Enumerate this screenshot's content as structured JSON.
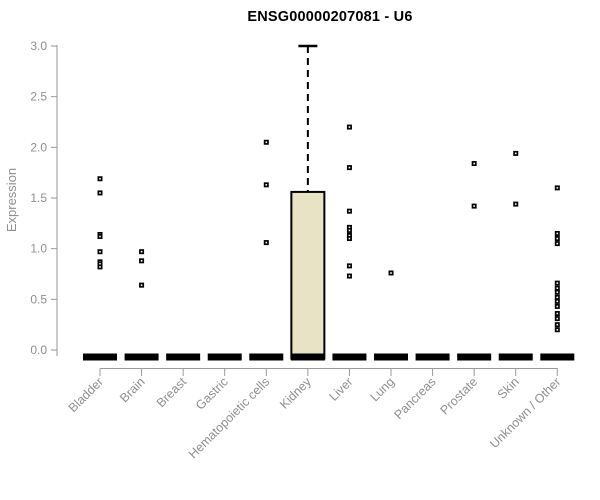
{
  "title": "ENSG00000207081 - U6",
  "colors": {
    "background": "#ffffff",
    "title_text": "#000000",
    "axis_line": "#9a9a9a",
    "axis_text": "#8f8f8f",
    "point": "#000000",
    "zero_bar": "#000000",
    "box_fill": "#e9e3c6",
    "box_stroke": "#000000",
    "whisker": "#000000"
  },
  "chart_data": {
    "type": "boxplot",
    "title": "ENSG00000207081 - U6",
    "xlabel": "",
    "ylabel": "Expression",
    "ylim": [
      0.0,
      3.0
    ],
    "yticks": [
      0.0,
      0.5,
      1.0,
      1.5,
      2.0,
      2.5,
      3.0
    ],
    "ytick_labels": [
      "0.0",
      "0.5",
      "1.0",
      "1.5",
      "2.0",
      "2.5",
      "3.0"
    ],
    "grid": false,
    "legend": "none",
    "x_labels_rotation_deg": 45,
    "categories": [
      "Bladder",
      "Brain",
      "Breast",
      "Gastric",
      "Hematopoietic cells",
      "Kidney",
      "Liver",
      "Lung",
      "Pancreas",
      "Prostate",
      "Skin",
      "Unknown / Other"
    ],
    "boxes": [
      {
        "category": "Bladder",
        "q1": 0,
        "median": 0,
        "q3": 0,
        "whisker_low": 0,
        "whisker_high": 0,
        "points": [
          1.69,
          1.55,
          1.14,
          1.12,
          0.97,
          0.87,
          0.85,
          0.82
        ]
      },
      {
        "category": "Brain",
        "q1": 0,
        "median": 0,
        "q3": 0,
        "whisker_low": 0,
        "whisker_high": 0,
        "points": [
          0.97,
          0.88,
          0.64
        ]
      },
      {
        "category": "Breast",
        "q1": 0,
        "median": 0,
        "q3": 0,
        "whisker_low": 0,
        "whisker_high": 0,
        "points": []
      },
      {
        "category": "Gastric",
        "q1": 0,
        "median": 0,
        "q3": 0,
        "whisker_low": 0,
        "whisker_high": 0,
        "points": []
      },
      {
        "category": "Hematopoietic cells",
        "q1": 0,
        "median": 0,
        "q3": 0,
        "whisker_low": 0,
        "whisker_high": 0,
        "points": [
          2.05,
          1.63,
          1.06
        ]
      },
      {
        "category": "Kidney",
        "q1": 0,
        "median": 0.02,
        "q3": 1.56,
        "whisker_low": 0,
        "whisker_high": 3.0,
        "points": []
      },
      {
        "category": "Liver",
        "q1": 0,
        "median": 0,
        "q3": 0,
        "whisker_low": 0,
        "whisker_high": 0,
        "points": [
          2.2,
          1.8,
          1.37,
          1.21,
          1.18,
          1.13,
          1.1,
          0.83,
          0.73
        ]
      },
      {
        "category": "Lung",
        "q1": 0,
        "median": 0,
        "q3": 0,
        "whisker_low": 0,
        "whisker_high": 0,
        "points": [
          0.76
        ]
      },
      {
        "category": "Pancreas",
        "q1": 0,
        "median": 0,
        "q3": 0,
        "whisker_low": 0,
        "whisker_high": 0,
        "points": []
      },
      {
        "category": "Prostate",
        "q1": 0,
        "median": 0,
        "q3": 0,
        "whisker_low": 0,
        "whisker_high": 0,
        "points": [
          1.84,
          1.42
        ]
      },
      {
        "category": "Skin",
        "q1": 0,
        "median": 0,
        "q3": 0,
        "whisker_low": 0,
        "whisker_high": 0,
        "points": [
          1.94,
          1.44
        ]
      },
      {
        "category": "Unknown / Other",
        "q1": 0,
        "median": 0,
        "q3": 0,
        "whisker_low": 0,
        "whisker_high": 0,
        "points": [
          1.6,
          1.15,
          1.1,
          1.05,
          0.66,
          0.61,
          0.57,
          0.52,
          0.48,
          0.43,
          0.36,
          0.31,
          0.25,
          0.2
        ]
      }
    ]
  }
}
